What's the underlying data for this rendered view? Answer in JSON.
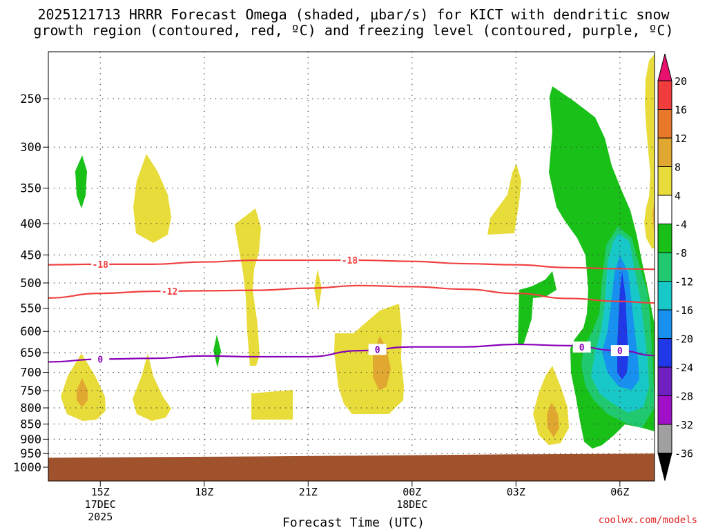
{
  "chart_data": {
    "type": "heatmap",
    "title_line1": "2025121713 HRRR Forecast Omega (shaded, μbar/s) for KICT with dendritic snow",
    "title_line2": "growth region (contoured, red, ºC) and freezing level (contoured, purple, ºC)",
    "xlabel": "Forecast Time (UTC)",
    "ylabel": "",
    "x_range_hours": [
      13.5,
      31
    ],
    "x_ticks": [
      {
        "hour": 15,
        "label": "15Z",
        "sub1": "17DEC",
        "sub2": "2025"
      },
      {
        "hour": 18,
        "label": "18Z",
        "sub1": "",
        "sub2": ""
      },
      {
        "hour": 21,
        "label": "21Z",
        "sub1": "",
        "sub2": ""
      },
      {
        "hour": 24,
        "label": "00Z",
        "sub1": "18DEC",
        "sub2": ""
      },
      {
        "hour": 27,
        "label": "03Z",
        "sub1": "",
        "sub2": ""
      },
      {
        "hour": 30,
        "label": "06Z",
        "sub1": "",
        "sub2": ""
      }
    ],
    "y_axis": "pressure (mb), log scale",
    "y_range_mb": [
      200,
      1050
    ],
    "y_ticks": [
      250,
      300,
      350,
      400,
      450,
      500,
      550,
      600,
      650,
      700,
      750,
      800,
      850,
      900,
      950,
      1000
    ],
    "colorbar": {
      "labels": [
        20,
        16,
        12,
        8,
        4,
        -4,
        -8,
        -12,
        -16,
        -20,
        -24,
        -28,
        -32,
        -36
      ],
      "colors": [
        "#e8106e",
        "#f03c3c",
        "#e8782a",
        "#e0a830",
        "#e8dc3a",
        "#ffffff",
        "#18c018",
        "#20c870",
        "#18c8c8",
        "#1890f0",
        "#2038e8",
        "#7020c0",
        "#a010c8",
        "#a0a0a0",
        "#000000"
      ]
    },
    "contours": [
      {
        "name": "dendritic-top",
        "label": "-18",
        "color": "#f04040",
        "points": [
          [
            13.5,
            467
          ],
          [
            15,
            466
          ],
          [
            16.5,
            466
          ],
          [
            18,
            462
          ],
          [
            19.5,
            459
          ],
          [
            21,
            459
          ],
          [
            22.5,
            459
          ],
          [
            24,
            461
          ],
          [
            25.5,
            465
          ],
          [
            27,
            467
          ],
          [
            28.5,
            472
          ],
          [
            30,
            474
          ],
          [
            31,
            475
          ]
        ],
        "label_hours": [
          15.0,
          22.2
        ]
      },
      {
        "name": "dendritic-bottom",
        "label": "-12",
        "color": "#f04040",
        "points": [
          [
            13.5,
            529
          ],
          [
            15,
            520
          ],
          [
            16.5,
            516
          ],
          [
            18,
            515
          ],
          [
            19.5,
            514
          ],
          [
            21,
            510
          ],
          [
            22.5,
            505
          ],
          [
            24,
            507
          ],
          [
            25.5,
            512
          ],
          [
            27,
            520
          ],
          [
            28.5,
            530
          ],
          [
            30,
            536
          ],
          [
            31,
            539
          ]
        ],
        "label_hours": [
          17.0
        ]
      },
      {
        "name": "freezing-level",
        "label": "0",
        "color": "#8800b8",
        "points": [
          [
            13.5,
            673
          ],
          [
            15,
            666
          ],
          [
            16.5,
            664
          ],
          [
            18,
            658
          ],
          [
            19.5,
            660
          ],
          [
            21,
            660
          ],
          [
            22.5,
            645
          ],
          [
            24,
            636
          ],
          [
            25.5,
            636
          ],
          [
            27,
            630
          ],
          [
            28.5,
            633
          ],
          [
            30,
            645
          ],
          [
            31,
            657
          ]
        ],
        "label_hours": [
          15.0,
          23.0,
          28.9,
          30.0
        ]
      }
    ],
    "terrain_surface_mb": 960
  },
  "credit": "coolwx.com/models"
}
